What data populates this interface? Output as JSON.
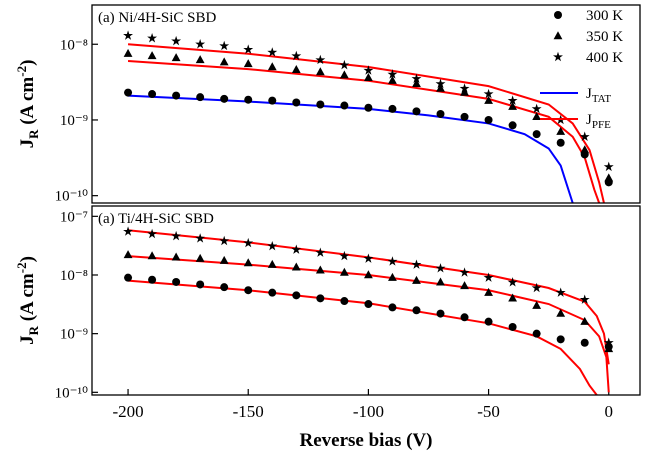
{
  "chart_data": [
    {
      "type": "scatter",
      "log_y": true,
      "title": "(a) Ni/4H-SiC SBD",
      "ylabel": {
        "main": "J",
        "sub": "R",
        "unit": " (A cm",
        "sup": "-2",
        "end": ")"
      },
      "legend": "top-right",
      "xlim": [
        -215,
        13
      ],
      "ylim": [
        8e-11,
        3.3e-08
      ],
      "yticks": [
        {
          "value": 1e-10,
          "label": "10⁻¹⁰"
        },
        {
          "value": 1e-09,
          "label": "10⁻⁹"
        },
        {
          "value": 1e-08,
          "label": "10⁻⁸"
        }
      ],
      "x": [
        -200,
        -190,
        -180,
        -170,
        -160,
        -150,
        -140,
        -130,
        -120,
        -110,
        -100,
        -90,
        -80,
        -70,
        -60,
        -50,
        -40,
        -30,
        -20,
        -10,
        0
      ],
      "series": [
        {
          "name": "300 K",
          "marker": "circle",
          "color": "#000000",
          "values": [
            2.3e-09,
            2.2e-09,
            2.1e-09,
            2e-09,
            1.9e-09,
            1.85e-09,
            1.8e-09,
            1.7e-09,
            1.6e-09,
            1.55e-09,
            1.45e-09,
            1.4e-09,
            1.3e-09,
            1.2e-09,
            1.1e-09,
            1e-09,
            8.5e-10,
            6.5e-10,
            5e-10,
            3.5e-10,
            1.5e-10
          ]
        },
        {
          "name": "350 K",
          "marker": "triangle",
          "color": "#000000",
          "values": [
            7.5e-09,
            7e-09,
            6.6e-09,
            6.2e-09,
            5.8e-09,
            5.5e-09,
            5e-09,
            4.6e-09,
            4.3e-09,
            3.9e-09,
            3.6e-09,
            3.3e-09,
            3e-09,
            2.6e-09,
            2.3e-09,
            1.8e-09,
            1.5e-09,
            1.1e-09,
            7e-10,
            4e-10,
            1.7e-10
          ]
        },
        {
          "name": "400 K",
          "marker": "star",
          "color": "#000000",
          "values": [
            1.3e-08,
            1.2e-08,
            1.1e-08,
            1e-08,
            9.5e-09,
            8.5e-09,
            7.8e-09,
            7e-09,
            6.2e-09,
            5.3e-09,
            4.5e-09,
            4e-09,
            3.5e-09,
            3e-09,
            2.6e-09,
            2.2e-09,
            1.8e-09,
            1.4e-09,
            1e-09,
            6e-10,
            2.4e-10
          ]
        }
      ],
      "lines": [
        {
          "name": "J",
          "name_sub": "TAT",
          "color": "#0000ff",
          "x": [
            -200,
            -150,
            -100,
            -75,
            -50,
            -35,
            -25,
            -20,
            -15
          ],
          "values": [
            2.1e-09,
            1.75e-09,
            1.4e-09,
            1.15e-09,
            9e-10,
            6.5e-10,
            4.2e-10,
            2.5e-10,
            8e-11
          ]
        },
        {
          "name": "J",
          "name_sub": "PFE",
          "color": "#ff0000",
          "x": [
            -200,
            -150,
            -100,
            -50,
            -25,
            -15,
            -8,
            -4,
            -2
          ],
          "values": [
            1e-08,
            7.5e-09,
            5e-09,
            2.8e-09,
            1.6e-09,
            9e-10,
            4e-10,
            1.5e-10,
            8e-11
          ]
        },
        {
          "color": "#ff0000",
          "x": [
            -200,
            -150,
            -100,
            -50,
            -25,
            -15,
            -10,
            -6,
            -4
          ],
          "values": [
            6e-09,
            4.7e-09,
            3.3e-09,
            1.9e-09,
            1.1e-09,
            6e-10,
            3.2e-10,
            1.2e-10,
            8e-11
          ]
        }
      ]
    },
    {
      "type": "scatter",
      "log_y": true,
      "title": "(a) Ti/4H-SiC SBD",
      "ylabel": {
        "main": "J",
        "sub": "R",
        "unit": " (A cm",
        "sup": "-2",
        "end": ")"
      },
      "xlabel": "Reverse bias (V)",
      "xlim": [
        -215,
        13
      ],
      "ylim": [
        9e-11,
        1.5e-07
      ],
      "xticks": [
        -200,
        -150,
        -100,
        -50,
        0
      ],
      "yticks": [
        {
          "value": 1e-10,
          "label": "10⁻¹⁰"
        },
        {
          "value": 1e-09,
          "label": "10⁻⁹"
        },
        {
          "value": 1e-08,
          "label": "10⁻⁸"
        },
        {
          "value": 1e-07,
          "label": "10⁻⁷"
        }
      ],
      "x": [
        -200,
        -190,
        -180,
        -170,
        -160,
        -150,
        -140,
        -130,
        -120,
        -110,
        -100,
        -90,
        -80,
        -70,
        -60,
        -50,
        -40,
        -30,
        -20,
        -10,
        0
      ],
      "series": [
        {
          "marker": "circle",
          "color": "#000000",
          "values": [
            9e-09,
            8.3e-09,
            7.6e-09,
            6.9e-09,
            6.2e-09,
            5.5e-09,
            5e-09,
            4.5e-09,
            4e-09,
            3.6e-09,
            3.2e-09,
            2.8e-09,
            2.5e-09,
            2.2e-09,
            1.9e-09,
            1.6e-09,
            1.3e-09,
            1e-09,
            8e-10,
            7e-10,
            6e-10
          ]
        },
        {
          "marker": "triangle",
          "color": "#000000",
          "values": [
            2.2e-08,
            2.1e-08,
            2e-08,
            1.9e-08,
            1.75e-08,
            1.6e-08,
            1.5e-08,
            1.35e-08,
            1.2e-08,
            1.1e-08,
            1e-08,
            9e-09,
            8e-09,
            7.5e-09,
            6.5e-09,
            5e-09,
            4e-09,
            3e-09,
            2.2e-09,
            1.6e-09,
            5.5e-10
          ]
        },
        {
          "marker": "star",
          "color": "#000000",
          "values": [
            5.5e-08,
            5e-08,
            4.6e-08,
            4.2e-08,
            3.8e-08,
            3.5e-08,
            3.1e-08,
            2.7e-08,
            2.4e-08,
            2.1e-08,
            1.9e-08,
            1.7e-08,
            1.5e-08,
            1.3e-08,
            1.1e-08,
            9e-09,
            7.5e-09,
            6e-09,
            5e-09,
            3.8e-09,
            7e-10
          ]
        }
      ],
      "lines": [
        {
          "color": "#ff0000",
          "x": [
            -200,
            -150,
            -100,
            -50,
            -25,
            -10,
            -5,
            -2,
            0
          ],
          "values": [
            5.8e-08,
            3.6e-08,
            2e-08,
            1e-08,
            6e-09,
            3.5e-09,
            2e-09,
            1e-09,
            3e-10
          ]
        },
        {
          "color": "#ff0000",
          "x": [
            -200,
            -150,
            -100,
            -50,
            -25,
            -10,
            -4,
            -1,
            0
          ],
          "values": [
            2.1e-08,
            1.5e-08,
            1e-08,
            5.5e-09,
            3.2e-09,
            1.7e-09,
            9e-10,
            4e-10,
            1e-10
          ]
        },
        {
          "color": "#ff0000",
          "x": [
            -200,
            -150,
            -100,
            -50,
            -30,
            -20,
            -12,
            -8,
            -5
          ],
          "values": [
            8e-09,
            5.5e-09,
            3.3e-09,
            1.5e-09,
            9e-10,
            5.5e-10,
            2.5e-10,
            1.3e-10,
            9e-11
          ]
        }
      ]
    }
  ]
}
